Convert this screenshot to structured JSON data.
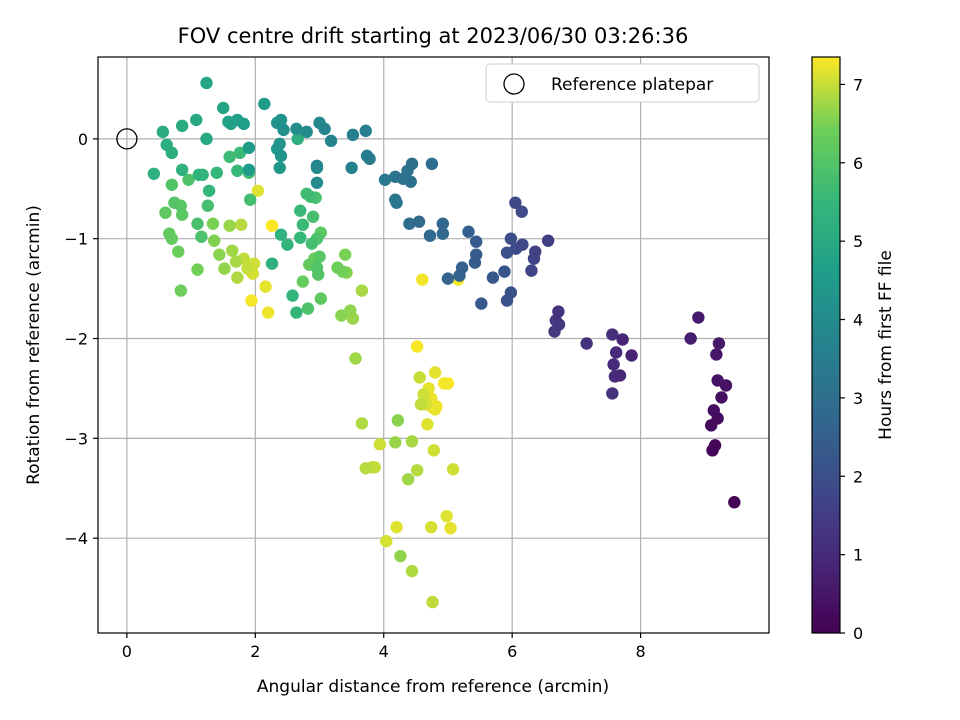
{
  "chart_data": {
    "type": "scatter",
    "title": "FOV centre drift starting at 2023/06/30 03:26:36",
    "xlabel": "Angular distance from reference (arcmin)",
    "ylabel": "Rotation from reference (arcmin)",
    "xlim": [
      -0.45,
      10.0
    ],
    "ylim": [
      -4.95,
      0.82
    ],
    "xticks": [
      0,
      2,
      4,
      6,
      8
    ],
    "yticks": [
      0,
      -1,
      -2,
      -3,
      -4
    ],
    "grid": true,
    "colormap": "viridis",
    "colorbar": {
      "label": "Hours from first FF file",
      "range": [
        0,
        7.35
      ],
      "ticks": [
        0,
        1,
        2,
        3,
        4,
        5,
        6,
        7
      ]
    },
    "legend": {
      "placement": "top-right",
      "entries": [
        {
          "label": "Reference platepar",
          "marker": "open-circle"
        }
      ]
    },
    "reference_point": {
      "x": 0,
      "y": 0
    },
    "points": [
      [
        9.46,
        -3.64,
        0.05
      ],
      [
        9.12,
        -3.12,
        0.1
      ],
      [
        9.16,
        -3.07,
        0.15
      ],
      [
        9.1,
        -2.87,
        0.2
      ],
      [
        9.2,
        -2.8,
        0.25
      ],
      [
        9.14,
        -2.72,
        0.3
      ],
      [
        9.26,
        -2.59,
        0.35
      ],
      [
        9.33,
        -2.47,
        0.4
      ],
      [
        9.2,
        -2.42,
        0.45
      ],
      [
        9.18,
        -2.16,
        0.5
      ],
      [
        9.22,
        -2.05,
        0.55
      ],
      [
        8.9,
        -1.79,
        0.6
      ],
      [
        8.78,
        -2.0,
        0.65
      ],
      [
        7.86,
        -2.17,
        0.8
      ],
      [
        7.72,
        -2.01,
        0.85
      ],
      [
        7.68,
        -2.37,
        0.9
      ],
      [
        7.62,
        -2.14,
        0.95
      ],
      [
        7.58,
        -2.26,
        1.0
      ],
      [
        7.6,
        -2.38,
        1.05
      ],
      [
        7.56,
        -1.96,
        1.1
      ],
      [
        7.56,
        -2.55,
        1.15
      ],
      [
        7.16,
        -2.05,
        1.2
      ],
      [
        6.72,
        -1.73,
        1.25
      ],
      [
        6.68,
        -1.82,
        1.3
      ],
      [
        6.73,
        -1.86,
        1.35
      ],
      [
        6.66,
        -1.93,
        1.4
      ],
      [
        6.56,
        -1.02,
        1.55
      ],
      [
        6.36,
        -1.13,
        1.6
      ],
      [
        6.34,
        -1.2,
        1.65
      ],
      [
        6.3,
        -1.32,
        1.7
      ],
      [
        6.16,
        -1.06,
        1.75
      ],
      [
        6.05,
        -0.64,
        1.8
      ],
      [
        6.15,
        -0.73,
        1.85
      ],
      [
        6.06,
        -1.1,
        1.9
      ],
      [
        5.98,
        -1.0,
        1.95
      ],
      [
        5.92,
        -1.14,
        2.0
      ],
      [
        5.98,
        -1.54,
        2.05
      ],
      [
        5.92,
        -1.62,
        2.1
      ],
      [
        5.88,
        -1.33,
        2.2
      ],
      [
        5.7,
        -1.39,
        2.25
      ],
      [
        5.52,
        -1.65,
        2.3
      ],
      [
        5.44,
        -1.03,
        2.35
      ],
      [
        5.44,
        -1.16,
        2.4
      ],
      [
        5.42,
        -1.24,
        2.45
      ],
      [
        5.32,
        -0.93,
        2.5
      ],
      [
        5.22,
        -1.29,
        2.55
      ],
      [
        5.18,
        -1.37,
        2.6
      ],
      [
        5.0,
        -1.4,
        2.65
      ],
      [
        4.92,
        -0.85,
        2.7
      ],
      [
        4.92,
        -0.95,
        2.75
      ],
      [
        4.72,
        -0.97,
        2.8
      ],
      [
        4.55,
        -0.83,
        2.85
      ],
      [
        4.4,
        -0.85,
        2.9
      ],
      [
        4.75,
        -0.25,
        2.95
      ],
      [
        4.44,
        -0.25,
        3.0
      ],
      [
        4.42,
        -0.43,
        3.05
      ],
      [
        4.37,
        -0.32,
        3.1
      ],
      [
        4.3,
        -0.4,
        3.15
      ],
      [
        4.18,
        -0.38,
        3.2
      ],
      [
        4.18,
        -0.61,
        3.25
      ],
      [
        4.2,
        -0.64,
        3.3
      ],
      [
        4.02,
        -0.41,
        3.35
      ],
      [
        3.78,
        -0.2,
        3.45
      ],
      [
        3.74,
        -0.17,
        3.5
      ],
      [
        3.72,
        0.08,
        3.55
      ],
      [
        3.52,
        0.04,
        3.6
      ],
      [
        3.5,
        -0.29,
        3.65
      ],
      [
        3.18,
        -0.02,
        3.7
      ],
      [
        3.08,
        0.1,
        3.75
      ],
      [
        3.0,
        0.16,
        3.8
      ],
      [
        2.96,
        -0.27,
        3.85
      ],
      [
        2.96,
        -0.29,
        3.9
      ],
      [
        2.96,
        -0.44,
        3.95
      ],
      [
        2.8,
        0.07,
        4.0
      ],
      [
        2.64,
        0.1,
        4.05
      ],
      [
        2.44,
        0.09,
        4.1
      ],
      [
        2.4,
        0.19,
        4.15
      ],
      [
        2.34,
        0.16,
        4.2
      ],
      [
        2.38,
        -0.05,
        4.25
      ],
      [
        2.4,
        -0.17,
        4.3
      ],
      [
        2.38,
        -0.29,
        4.35
      ],
      [
        2.34,
        -0.1,
        4.4
      ],
      [
        2.14,
        0.35,
        4.45
      ],
      [
        1.9,
        -0.31,
        4.5
      ],
      [
        1.9,
        -0.09,
        4.55
      ],
      [
        1.82,
        0.15,
        4.6
      ],
      [
        1.72,
        0.19,
        4.65
      ],
      [
        1.62,
        0.15,
        4.7
      ],
      [
        1.58,
        0.17,
        4.75
      ],
      [
        1.5,
        0.31,
        4.8
      ],
      [
        1.24,
        0.56,
        4.85
      ],
      [
        1.24,
        0.0,
        4.95
      ],
      [
        1.08,
        0.19,
        5.0
      ],
      [
        0.86,
        0.13,
        5.05
      ],
      [
        0.56,
        0.07,
        5.1
      ],
      [
        0.62,
        -0.06,
        5.15
      ],
      [
        0.7,
        -0.14,
        5.2
      ],
      [
        0.42,
        -0.35,
        5.25
      ],
      [
        0.86,
        -0.31,
        5.3
      ],
      [
        1.12,
        -0.36,
        5.35
      ],
      [
        1.18,
        -0.36,
        5.4
      ],
      [
        1.28,
        -0.52,
        5.45
      ],
      [
        1.4,
        -0.34,
        5.5
      ],
      [
        1.72,
        -0.32,
        5.55
      ],
      [
        1.76,
        -0.14,
        5.6
      ],
      [
        1.6,
        -0.18,
        5.65
      ],
      [
        1.9,
        -0.34,
        5.7
      ],
      [
        1.92,
        -0.61,
        5.75
      ],
      [
        1.26,
        -0.67,
        5.8
      ],
      [
        1.1,
        -0.85,
        5.85
      ],
      [
        1.16,
        -0.98,
        5.9
      ],
      [
        0.96,
        -0.41,
        5.95
      ],
      [
        0.7,
        -0.46,
        6.0
      ],
      [
        0.74,
        -0.64,
        6.05
      ],
      [
        0.84,
        -0.67,
        6.1
      ],
      [
        0.86,
        -0.76,
        6.15
      ],
      [
        0.6,
        -0.74,
        6.2
      ],
      [
        0.66,
        -0.95,
        6.25
      ],
      [
        0.7,
        -1.0,
        6.3
      ],
      [
        0.8,
        -1.13,
        6.35
      ],
      [
        0.84,
        -1.52,
        6.4
      ],
      [
        1.1,
        -1.31,
        6.45
      ],
      [
        1.34,
        -0.85,
        6.5
      ],
      [
        1.36,
        -1.02,
        6.55
      ],
      [
        1.44,
        -1.16,
        6.6
      ],
      [
        1.52,
        -1.3,
        6.65
      ],
      [
        1.6,
        -0.87,
        6.7
      ],
      [
        1.64,
        -1.12,
        6.75
      ],
      [
        1.7,
        -1.23,
        6.8
      ],
      [
        1.72,
        -1.39,
        6.85
      ],
      [
        1.78,
        -0.86,
        6.9
      ],
      [
        1.82,
        -1.2,
        6.95
      ],
      [
        1.88,
        -1.3,
        7.0
      ],
      [
        1.98,
        -1.25,
        7.05
      ],
      [
        1.96,
        -1.35,
        7.1
      ],
      [
        2.04,
        -0.52,
        7.15
      ],
      [
        2.16,
        -1.48,
        7.2
      ],
      [
        2.2,
        -1.74,
        7.25
      ],
      [
        1.94,
        -1.62,
        7.3
      ],
      [
        2.26,
        -0.87,
        7.35
      ]
    ],
    "points_b": [
      [
        2.66,
        0.0,
        5.2
      ],
      [
        2.26,
        -1.25,
        5.25
      ],
      [
        2.4,
        -0.96,
        5.3
      ],
      [
        2.5,
        -1.06,
        5.35
      ],
      [
        2.58,
        -1.57,
        5.4
      ],
      [
        2.64,
        -1.74,
        5.45
      ],
      [
        2.7,
        -0.99,
        5.5
      ],
      [
        2.7,
        -0.72,
        5.55
      ],
      [
        2.74,
        -0.86,
        5.6
      ],
      [
        2.8,
        -0.55,
        5.65
      ],
      [
        2.86,
        -0.58,
        5.7
      ],
      [
        2.88,
        -1.05,
        5.75
      ],
      [
        2.9,
        -0.78,
        5.8
      ],
      [
        2.94,
        -0.59,
        5.85
      ],
      [
        2.96,
        -1.0,
        5.9
      ],
      [
        2.82,
        -1.7,
        5.95
      ],
      [
        2.96,
        -1.29,
        6.0
      ],
      [
        2.98,
        -1.36,
        6.05
      ],
      [
        3.0,
        -1.18,
        6.1
      ],
      [
        3.02,
        -0.94,
        6.15
      ],
      [
        3.02,
        -1.6,
        6.2
      ],
      [
        2.84,
        -1.26,
        6.25
      ],
      [
        2.74,
        -1.43,
        6.3
      ],
      [
        2.92,
        -1.2,
        6.35
      ],
      [
        3.28,
        -1.29,
        6.4
      ],
      [
        3.36,
        -1.33,
        6.45
      ],
      [
        3.4,
        -1.16,
        6.5
      ],
      [
        3.42,
        -1.34,
        6.55
      ],
      [
        3.34,
        -1.77,
        6.6
      ],
      [
        3.48,
        -1.72,
        6.65
      ],
      [
        3.52,
        -1.8,
        6.7
      ],
      [
        3.56,
        -2.2,
        6.75
      ],
      [
        3.66,
        -1.52,
        6.8
      ],
      [
        3.66,
        -2.85,
        6.85
      ],
      [
        3.72,
        -3.3,
        6.9
      ],
      [
        3.82,
        -3.29,
        6.95
      ],
      [
        3.86,
        -3.29,
        7.0
      ],
      [
        3.94,
        -3.06,
        7.05
      ],
      [
        4.04,
        -4.03,
        7.1
      ],
      [
        4.2,
        -3.89,
        7.15
      ]
    ],
    "points_c": [
      [
        4.22,
        -2.82,
        6.6
      ],
      [
        4.26,
        -4.18,
        6.65
      ],
      [
        4.18,
        -3.04,
        6.7
      ],
      [
        4.38,
        -3.41,
        6.75
      ],
      [
        4.44,
        -3.03,
        6.8
      ],
      [
        4.44,
        -4.33,
        6.85
      ],
      [
        4.52,
        -3.32,
        6.9
      ],
      [
        4.58,
        -2.66,
        6.95
      ],
      [
        4.56,
        -2.39,
        7.0
      ],
      [
        4.62,
        -2.56,
        7.05
      ],
      [
        4.66,
        -2.66,
        7.1
      ],
      [
        4.68,
        -2.86,
        7.15
      ],
      [
        4.7,
        -2.5,
        7.2
      ],
      [
        4.74,
        -2.6,
        7.25
      ],
      [
        4.76,
        -2.69,
        7.3
      ],
      [
        4.52,
        -2.08,
        7.32
      ],
      [
        4.6,
        -1.41,
        7.28
      ],
      [
        4.74,
        -3.89,
        7.1
      ],
      [
        4.78,
        -3.12,
        7.05
      ],
      [
        4.76,
        -4.64,
        6.95
      ],
      [
        4.8,
        -2.34,
        7.18
      ],
      [
        4.8,
        -2.71,
        7.22
      ],
      [
        4.94,
        -2.45,
        7.3
      ],
      [
        4.98,
        -3.78,
        7.15
      ],
      [
        5.04,
        -3.9,
        7.2
      ],
      [
        5.0,
        -2.45,
        7.33
      ],
      [
        5.08,
        -3.31,
        7.05
      ],
      [
        5.16,
        -1.41,
        7.3
      ],
      [
        4.66,
        -2.62,
        7.26
      ],
      [
        4.82,
        -2.68,
        7.24
      ]
    ]
  }
}
